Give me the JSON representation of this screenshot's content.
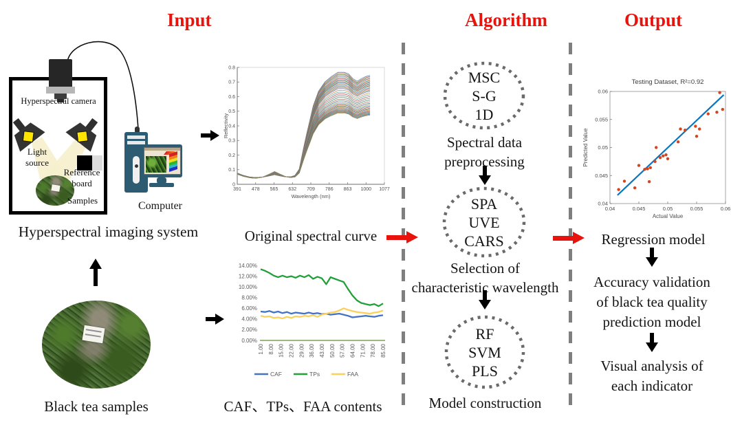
{
  "headers": {
    "input": "Input",
    "algorithm": "Algorithm",
    "output": "Output",
    "accent_color": "#e8130c"
  },
  "input_section": {
    "system": {
      "camera_label": "Hyperspectral camera",
      "light_source_lines": [
        "Light",
        "source"
      ],
      "reference_board_lines": [
        "Reference",
        "board"
      ],
      "samples_label": "Samples",
      "caption": "Hyperspectral imaging system"
    },
    "computer_label": "Computer",
    "tea_caption": "Black tea samples",
    "spectral_caption": "Original spectral curve",
    "contents_caption": "CAF、TPs、FAA contents"
  },
  "algorithm_section": {
    "steps": [
      {
        "methods": [
          "MSC",
          "S-G",
          "1D"
        ],
        "label_lines": [
          "Spectral data",
          "preprocessing"
        ]
      },
      {
        "methods": [
          "SPA",
          "UVE",
          "CARS"
        ],
        "label_lines": [
          "Selection of",
          "characteristic wavelength"
        ]
      },
      {
        "methods": [
          "RF",
          "SVM",
          "PLS"
        ],
        "label_lines": [
          "Model construction"
        ]
      }
    ]
  },
  "output_section": {
    "regression_label": "Regression model",
    "accuracy_lines": [
      "Accuracy validation",
      "of black tea quality",
      "prediction model"
    ],
    "visual_lines": [
      "Visual analysis of",
      "each indicator"
    ]
  },
  "chart_data": [
    {
      "id": "spectral",
      "type": "line",
      "title": "",
      "xlabel": "Wavelength (nm)",
      "ylabel": "Reflectivity",
      "xlim": [
        391,
        1077
      ],
      "ylim": [
        0,
        0.8
      ],
      "x_tick_labels": [
        "391",
        "478",
        "565",
        "632",
        "709",
        "786",
        "863",
        "1000",
        "1077"
      ],
      "y_tick_labels": [
        "0",
        "0.1",
        "0.2",
        "0.3",
        "0.4",
        "0.5",
        "0.6",
        "0.7",
        "0.8"
      ],
      "x_points": [
        391,
        420,
        450,
        478,
        510,
        540,
        565,
        590,
        615,
        640,
        660,
        680,
        700,
        715,
        730,
        745,
        770,
        800,
        830,
        860,
        890,
        910,
        930,
        950,
        970,
        990,
        1010
      ],
      "base_low": [
        0.07,
        0.055,
        0.045,
        0.042,
        0.045,
        0.053,
        0.06,
        0.053,
        0.047,
        0.043,
        0.042,
        0.042,
        0.042,
        0.042,
        0.042,
        0.042,
        0.042,
        0.042,
        0.042,
        0.042,
        0.042,
        0.042,
        0.042,
        0.042,
        0.042,
        0.042,
        0.042
      ],
      "base_bump": [
        0,
        0,
        0,
        0,
        0.18,
        0.6,
        1.0,
        0.62,
        0.25,
        0.06,
        0,
        0,
        0,
        0,
        0,
        0,
        0,
        0,
        0,
        0,
        0,
        0,
        0,
        0,
        0,
        0,
        0
      ],
      "base_rise": [
        0,
        0,
        0,
        0,
        0,
        0,
        0,
        0,
        0,
        0.005,
        0.02,
        0.08,
        0.28,
        0.42,
        0.55,
        0.68,
        0.82,
        0.91,
        0.96,
        1.0,
        1.0,
        0.985,
        0.94,
        0.915,
        0.94,
        0.96,
        0.97
      ],
      "series_factors": [
        0.72,
        0.712,
        0.705,
        0.698,
        0.691,
        0.684,
        0.677,
        0.67,
        0.663,
        0.656,
        0.649,
        0.642,
        0.634,
        0.626,
        0.618,
        0.61,
        0.598,
        0.586,
        0.574,
        0.562,
        0.55,
        0.538,
        0.527,
        0.517,
        0.508,
        0.5,
        0.493,
        0.487,
        0.481,
        0.476,
        0.471,
        0.466,
        0.461,
        0.456,
        0.451,
        0.446
      ],
      "palette": [
        "#4f7aa5",
        "#b0614a",
        "#6f8f4f",
        "#7c6bae",
        "#c3924a",
        "#5f9ea0",
        "#b35454",
        "#7a7a7a",
        "#4c8566",
        "#a1705a",
        "#3f6e8c",
        "#9d8f52"
      ]
    },
    {
      "id": "contents",
      "type": "line",
      "ylim": [
        0,
        14
      ],
      "x_ticks": [
        1,
        8,
        15,
        22,
        29,
        36,
        43,
        50,
        57,
        64,
        71,
        78,
        85
      ],
      "x_tick_labels": [
        "1.00",
        "8.00",
        "15.00",
        "22.00",
        "29.00",
        "36.00",
        "43.00",
        "50.00",
        "57.00",
        "64.00",
        "71.00",
        "78.00",
        "85.00"
      ],
      "y_tick_labels": [
        "0.00%",
        "2.00%",
        "4.00%",
        "6.00%",
        "8.00%",
        "10.00%",
        "12.00%",
        "14.00%"
      ],
      "baseline_color": "#7f9e57",
      "x_points": [
        1,
        4,
        7,
        10,
        13,
        16,
        19,
        22,
        25,
        28,
        31,
        34,
        37,
        40,
        43,
        46,
        49,
        52,
        55,
        58,
        61,
        64,
        67,
        70,
        73,
        76,
        79,
        82,
        85
      ],
      "series": [
        {
          "name": "CAF",
          "color": "#4472c4",
          "values": [
            5.4,
            5.3,
            5.5,
            5.2,
            5.4,
            5.1,
            5.3,
            5.0,
            5.2,
            5.1,
            5.0,
            5.2,
            5.0,
            5.1,
            4.9,
            5.0,
            4.8,
            4.9,
            5.0,
            4.8,
            4.6,
            4.3,
            4.4,
            4.5,
            4.6,
            4.5,
            4.4,
            4.6,
            4.7
          ]
        },
        {
          "name": "TPs",
          "color": "#21a038",
          "values": [
            13.3,
            13.0,
            12.6,
            12.1,
            11.8,
            12.1,
            11.8,
            12.0,
            11.7,
            12.1,
            11.8,
            12.2,
            11.5,
            11.9,
            11.6,
            10.5,
            11.8,
            11.5,
            11.2,
            10.9,
            9.6,
            8.4,
            7.5,
            7.0,
            6.8,
            6.6,
            6.8,
            6.4,
            6.9
          ]
        },
        {
          "name": "FAA",
          "color": "#fbd05b",
          "values": [
            4.6,
            4.4,
            4.5,
            4.2,
            4.3,
            4.1,
            4.4,
            4.2,
            4.5,
            4.4,
            4.6,
            4.5,
            4.7,
            4.4,
            4.8,
            5.0,
            5.2,
            5.3,
            5.6,
            6.0,
            5.7,
            5.5,
            5.3,
            5.2,
            5.1,
            5.0,
            5.2,
            5.3,
            5.6
          ]
        }
      ]
    },
    {
      "id": "scatter",
      "type": "scatter",
      "title": "Testing Dataset, R²=0.92",
      "xlabel": "Actual Value",
      "ylabel": "Predicted Value",
      "xlim": [
        0.04,
        0.06
      ],
      "ylim": [
        0.04,
        0.06
      ],
      "x_tick_labels": [
        "0.04",
        "0.045",
        "0.05",
        "0.055",
        "0.06"
      ],
      "y_tick_labels": [
        "0.04",
        "0.045",
        "0.05",
        "0.055",
        "0.06"
      ],
      "fit_line": {
        "x": [
          0.0413,
          0.0597
        ],
        "y": [
          0.0415,
          0.0594
        ],
        "color": "#0b76bd"
      },
      "point_color": "#d2451e",
      "points": [
        [
          0.0415,
          0.0425
        ],
        [
          0.0425,
          0.044
        ],
        [
          0.0443,
          0.0428
        ],
        [
          0.045,
          0.0468
        ],
        [
          0.046,
          0.0461
        ],
        [
          0.0465,
          0.0462
        ],
        [
          0.0468,
          0.0439
        ],
        [
          0.047,
          0.0464
        ],
        [
          0.0478,
          0.0475
        ],
        [
          0.048,
          0.05
        ],
        [
          0.0487,
          0.0482
        ],
        [
          0.0492,
          0.0485
        ],
        [
          0.0497,
          0.0487
        ],
        [
          0.05,
          0.048
        ],
        [
          0.0518,
          0.051
        ],
        [
          0.0522,
          0.0533
        ],
        [
          0.053,
          0.0531
        ],
        [
          0.0548,
          0.0538
        ],
        [
          0.055,
          0.052
        ],
        [
          0.0555,
          0.0533
        ],
        [
          0.057,
          0.056
        ],
        [
          0.0585,
          0.0563
        ],
        [
          0.059,
          0.0598
        ],
        [
          0.0595,
          0.0568
        ]
      ]
    }
  ]
}
